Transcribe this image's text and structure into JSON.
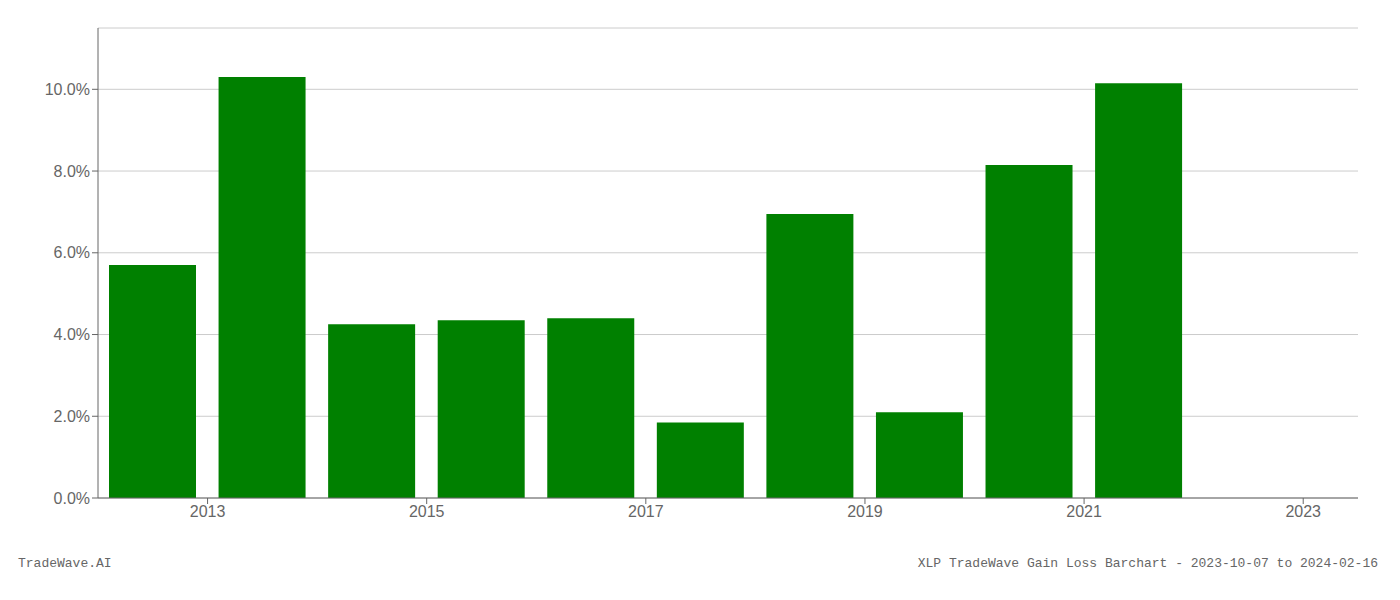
{
  "chart_data": {
    "type": "bar",
    "x": [
      2012.5,
      2013.5,
      2014.5,
      2015.5,
      2016.5,
      2017.5,
      2018.5,
      2019.5,
      2020.5,
      2021.5,
      2022.5
    ],
    "values": [
      0.057,
      0.103,
      0.0425,
      0.0435,
      0.044,
      0.0185,
      0.0695,
      0.021,
      0.0815,
      0.1015,
      0.0
    ],
    "color": "#008000",
    "xlim": [
      2012.0,
      2023.5
    ],
    "xticks": [
      2013,
      2015,
      2017,
      2019,
      2021,
      2023
    ],
    "ylim": [
      0,
      0.115
    ],
    "yticks": [
      {
        "value": 0.0,
        "label": "0.0%"
      },
      {
        "value": 0.02,
        "label": "2.0%"
      },
      {
        "value": 0.04,
        "label": "4.0%"
      },
      {
        "value": 0.06,
        "label": "6.0%"
      },
      {
        "value": 0.08,
        "label": "8.0%"
      },
      {
        "value": 0.1,
        "label": "10.0%"
      }
    ],
    "grid": true,
    "annotations": [
      "TradeWave.AI",
      "XLP TradeWave Gain Loss Barchart - 2023-10-07 to 2024-02-16"
    ]
  }
}
